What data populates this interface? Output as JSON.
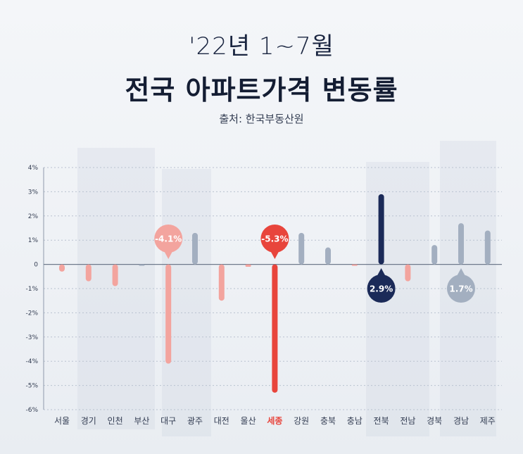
{
  "header": {
    "subtitle": "'22년 1~7월",
    "title": "전국 아파트가격 변동률",
    "source": "출처: 한국부동산원"
  },
  "colors": {
    "navy": "#1b2a58",
    "red": "#e8453c",
    "pink": "#f3a49e",
    "gray": "#a3afc0",
    "axis_text": "#333d52"
  },
  "chart_data": {
    "type": "bar",
    "title": "전국 아파트가격 변동률",
    "categories": [
      "서울",
      "경기",
      "인천",
      "부산",
      "대구",
      "광주",
      "대전",
      "울산",
      "세종",
      "강원",
      "충북",
      "충남",
      "전북",
      "전남",
      "경북",
      "경남",
      "제주"
    ],
    "values": [
      -0.3,
      -0.7,
      -0.9,
      0.0,
      -4.1,
      1.3,
      -1.5,
      -0.1,
      -5.3,
      1.3,
      0.7,
      -0.05,
      2.9,
      -0.7,
      0.8,
      1.7,
      1.4
    ],
    "highlight_category": "세종",
    "ylim": [
      -6,
      4
    ],
    "yticks": [
      "4%",
      "3%",
      "2%",
      "1%",
      "0",
      "-1%",
      "-2%",
      "-3%",
      "-4%",
      "-5%",
      "-6%"
    ],
    "ytick_values": [
      4,
      3,
      2,
      1,
      0,
      -1,
      -2,
      -3,
      -4,
      -5,
      -6
    ],
    "annotations": [
      {
        "category": "대구",
        "label": "-4.1%",
        "style": "pink-bubble-above"
      },
      {
        "category": "세종",
        "label": "-5.3%",
        "style": "red-bubble-above"
      },
      {
        "category": "전북",
        "label": "2.9%",
        "style": "navy-bubble-below"
      },
      {
        "category": "경남",
        "label": "1.7%",
        "style": "gray-bubble-below"
      }
    ],
    "grid": true
  }
}
